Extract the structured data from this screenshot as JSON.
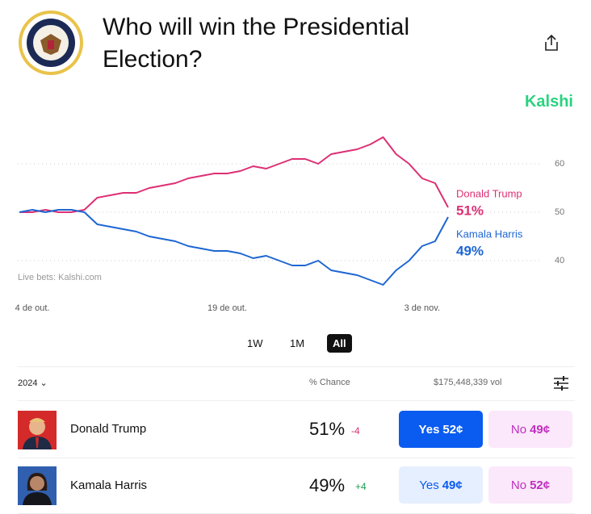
{
  "header": {
    "title": "Who will win the Presidential Election?",
    "brand": "Kalshi"
  },
  "chart_data": {
    "type": "line",
    "categories": [
      null,
      "4 de out.",
      null,
      null,
      null,
      null,
      null,
      null,
      null,
      null,
      null,
      null,
      null,
      null,
      null,
      null,
      "19 de out.",
      null,
      null,
      null,
      null,
      null,
      null,
      null,
      null,
      null,
      null,
      null,
      null,
      null,
      null,
      "3 de nov.",
      null,
      null
    ],
    "series": [
      {
        "name": "Donald Trump",
        "color": "#dd2f73",
        "current": "51%",
        "values": [
          50,
          50,
          50.5,
          50,
          50,
          50.5,
          53,
          53.5,
          54,
          54,
          55,
          55.5,
          56,
          57,
          57.5,
          58,
          58,
          58.5,
          59.5,
          59,
          60,
          61,
          61,
          60,
          62,
          62.5,
          63,
          64,
          65.5,
          62,
          60,
          57,
          56,
          51
        ]
      },
      {
        "name": "Kamala Harris",
        "color": "#1d66d2",
        "current": "49%",
        "values": [
          50,
          50.5,
          50,
          50.5,
          50.5,
          50,
          47.5,
          47,
          46.5,
          46,
          45,
          44.5,
          44,
          43,
          42.5,
          42,
          42,
          41.5,
          40.5,
          41,
          40,
          39,
          39,
          40,
          38,
          37.5,
          37,
          36,
          35,
          38,
          40,
          43,
          44,
          49
        ]
      }
    ],
    "ylim": [
      33,
      67
    ],
    "yticks": [
      40,
      50,
      60
    ],
    "grid": true,
    "source": "Live bets: Kalshi.com"
  },
  "ranges": [
    "1W",
    "1M",
    "All"
  ],
  "table": {
    "year": "2024",
    "chance_header": "% Chance",
    "volume": "$175,448,339 vol",
    "rows": [
      {
        "name": "Donald Trump",
        "chance": "51%",
        "change": "-4",
        "yes_label": "Yes",
        "yes_price": "52¢",
        "no_label": "No",
        "no_price": "49¢"
      },
      {
        "name": "Kamala Harris",
        "chance": "49%",
        "change": "+4",
        "yes_label": "Yes",
        "yes_price": "49¢",
        "no_label": "No",
        "no_price": "52¢"
      }
    ]
  }
}
